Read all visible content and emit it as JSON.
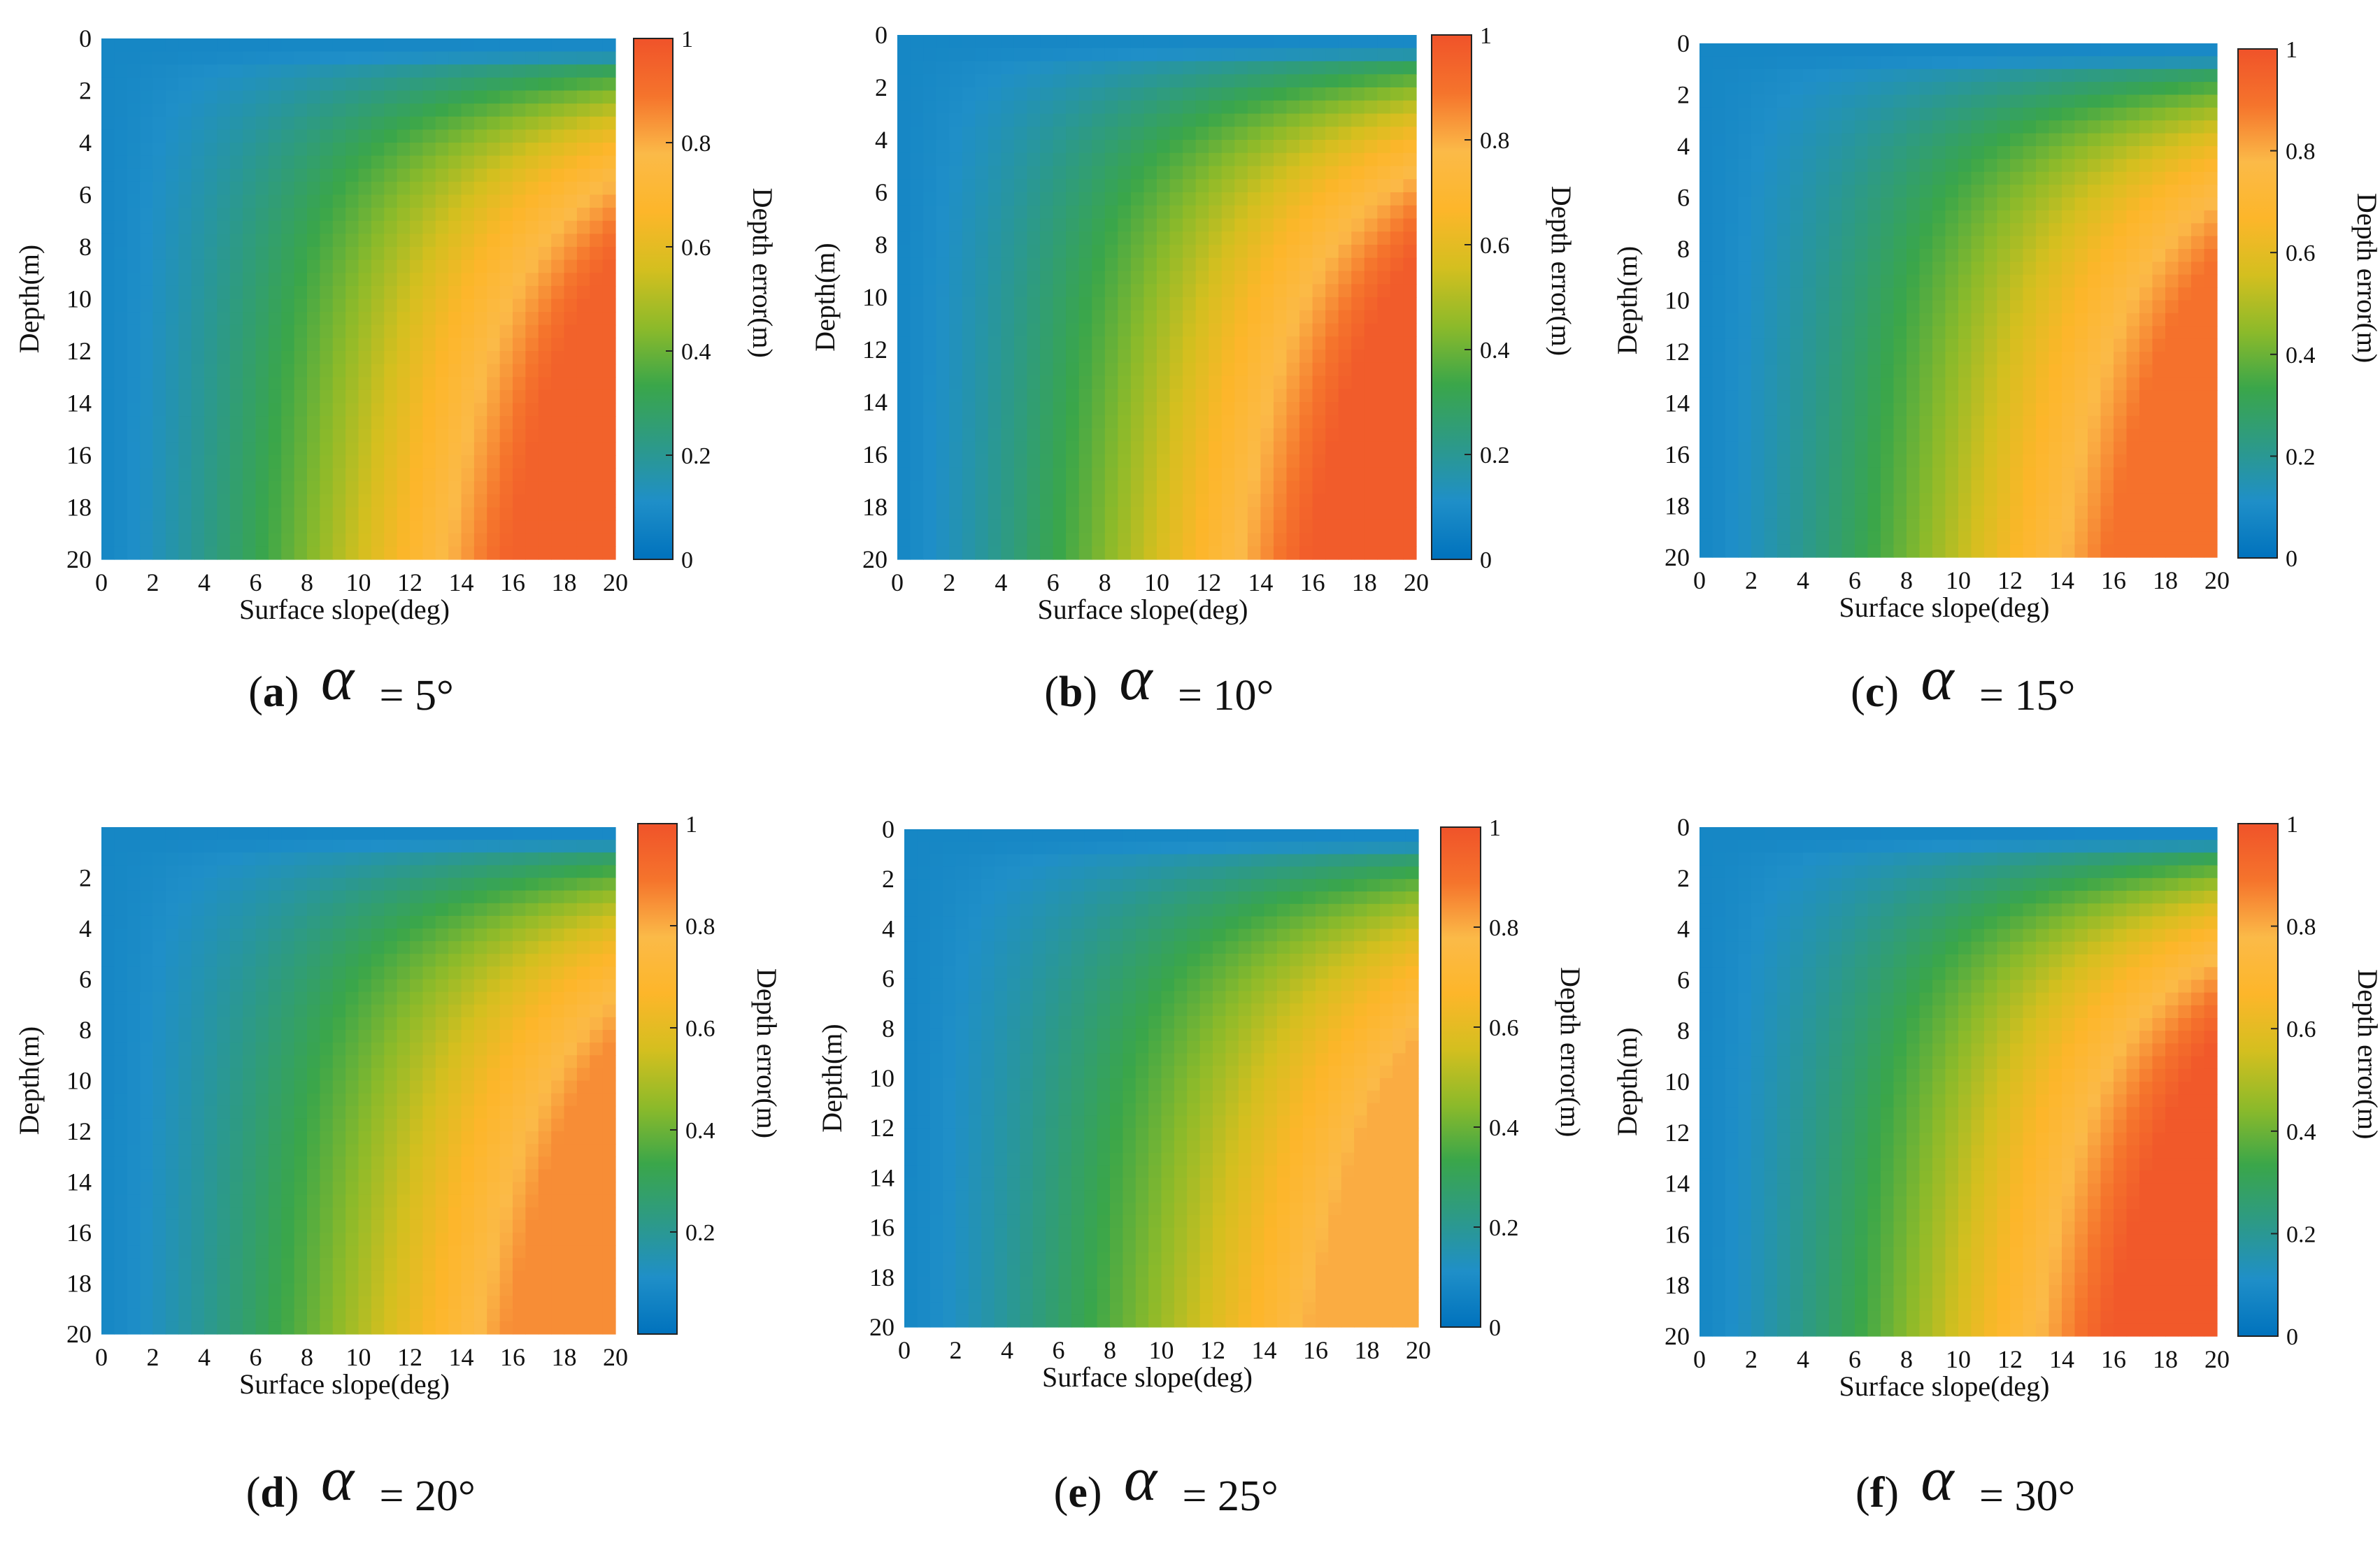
{
  "colors": {
    "colormap": [
      "#0072bd",
      "#1f8fc8",
      "#2d9a86",
      "#3aa64a",
      "#8cba2a",
      "#d4bf1f",
      "#fdb62a",
      "#fbba48",
      "#f5742c",
      "#f0532a"
    ],
    "text": "#111111",
    "axis": "#222222"
  },
  "chart_data": [
    {
      "type": "heatmap",
      "panel": "(a)",
      "letter": "a",
      "alpha_symbol": "α",
      "alpha_label": "= 5°",
      "alpha_deg": 5,
      "xlabel": "Surface slope(deg)",
      "ylabel": "Depth(m)",
      "colorbar_label": "Depth error(m)",
      "xlim": [
        0,
        20
      ],
      "ylim": [
        0,
        20
      ],
      "clim": [
        0,
        1
      ],
      "x_ticks": [
        "0",
        "2",
        "4",
        "6",
        "8",
        "10",
        "12",
        "14",
        "16",
        "18",
        "20"
      ],
      "y_ticks": [
        "0",
        "2",
        "4",
        "6",
        "8",
        "10",
        "12",
        "14",
        "16",
        "18",
        "20"
      ],
      "colorbar_ticks": [
        "0",
        "0.2",
        "0.4",
        "0.6",
        "0.8",
        "1"
      ],
      "data_description": "Depth error rises with surface slope and with depth; maximum about 0.95 m near slope 20 deg, depth 20 m"
    },
    {
      "type": "heatmap",
      "panel": "(b)",
      "letter": "b",
      "alpha_symbol": "α",
      "alpha_label": "= 10°",
      "alpha_deg": 10,
      "xlabel": "Surface slope(deg)",
      "ylabel": "Depth(m)",
      "colorbar_label": "Depth error(m)",
      "xlim": [
        0,
        20
      ],
      "ylim": [
        0,
        20
      ],
      "clim": [
        0,
        1
      ],
      "x_ticks": [
        "0",
        "2",
        "4",
        "6",
        "8",
        "10",
        "12",
        "14",
        "16",
        "18",
        "20"
      ],
      "y_ticks": [
        "0",
        "2",
        "4",
        "6",
        "8",
        "10",
        "12",
        "14",
        "16",
        "18",
        "20"
      ],
      "colorbar_ticks": [
        "0",
        "0.2",
        "0.4",
        "0.6",
        "0.8",
        "1"
      ],
      "data_description": "Depth error rises with surface slope and with depth; maximum about 0.97 m near slope 20 deg, depth 20 m"
    },
    {
      "type": "heatmap",
      "panel": "(c)",
      "letter": "c",
      "alpha_symbol": "α",
      "alpha_label": "= 15°",
      "alpha_deg": 15,
      "xlabel": "Surface slope(deg)",
      "ylabel": "Depth(m)",
      "colorbar_label": "Depth error(m)",
      "xlim": [
        0,
        20
      ],
      "ylim": [
        0,
        20
      ],
      "clim": [
        0,
        1
      ],
      "x_ticks": [
        "0",
        "2",
        "4",
        "6",
        "8",
        "10",
        "12",
        "14",
        "16",
        "18",
        "20"
      ],
      "y_ticks": [
        "0",
        "2",
        "4",
        "6",
        "8",
        "10",
        "12",
        "14",
        "16",
        "18",
        "20"
      ],
      "colorbar_ticks": [
        "0",
        "0.2",
        "0.4",
        "0.6",
        "0.8",
        "1"
      ],
      "data_description": "Depth error rises with surface slope and with depth; maximum about 0.9 m near slope 20 deg, depth 20 m"
    },
    {
      "type": "heatmap",
      "panel": "(d)",
      "letter": "d",
      "alpha_symbol": "α",
      "alpha_label": "= 20°",
      "alpha_deg": 20,
      "xlabel": "Surface slope(deg)",
      "ylabel": "Depth(m)",
      "colorbar_label": "Depth error(m)",
      "xlim": [
        0,
        20
      ],
      "ylim": [
        0,
        20
      ],
      "clim": [
        0,
        1
      ],
      "x_ticks": [
        "0",
        "2",
        "4",
        "6",
        "8",
        "10",
        "12",
        "14",
        "16",
        "18",
        "20"
      ],
      "y_ticks": [
        "2",
        "4",
        "6",
        "8",
        "10",
        "12",
        "14",
        "16",
        "18",
        "20"
      ],
      "colorbar_ticks": [
        "0.2",
        "0.4",
        "0.6",
        "0.8",
        "1"
      ],
      "data_description": "Depth error rises with surface slope and with depth; maximum about 0.85 m near slope 20 deg, depth 20 m"
    },
    {
      "type": "heatmap",
      "panel": "(e)",
      "letter": "e",
      "alpha_symbol": "α",
      "alpha_label": "= 25°",
      "alpha_deg": 25,
      "xlabel": "Surface slope(deg)",
      "ylabel": "Depth(m)",
      "colorbar_label": "Depth error(m)",
      "xlim": [
        0,
        20
      ],
      "ylim": [
        0,
        20
      ],
      "clim": [
        0,
        1
      ],
      "x_ticks": [
        "0",
        "2",
        "4",
        "6",
        "8",
        "10",
        "12",
        "14",
        "16",
        "18",
        "20"
      ],
      "y_ticks": [
        "0",
        "2",
        "4",
        "6",
        "8",
        "10",
        "12",
        "14",
        "16",
        "18",
        "20"
      ],
      "colorbar_ticks": [
        "0",
        "0.2",
        "0.4",
        "0.6",
        "0.8",
        "1"
      ],
      "data_description": "Depth error rises with surface slope and with depth; maximum about 0.8 m near slope 20 deg, depth 20 m"
    },
    {
      "type": "heatmap",
      "panel": "(f)",
      "letter": "f",
      "alpha_symbol": "α",
      "alpha_label": "= 30°",
      "alpha_deg": 30,
      "xlabel": "Surface slope(deg)",
      "ylabel": "Depth(m)",
      "colorbar_label": "Depth error(m)",
      "xlim": [
        0,
        20
      ],
      "ylim": [
        0,
        20
      ],
      "clim": [
        0,
        1
      ],
      "x_ticks": [
        "0",
        "2",
        "4",
        "6",
        "8",
        "10",
        "12",
        "14",
        "16",
        "18",
        "20"
      ],
      "y_ticks": [
        "0",
        "2",
        "4",
        "6",
        "8",
        "10",
        "12",
        "14",
        "16",
        "18",
        "20"
      ],
      "colorbar_ticks": [
        "0",
        "0.2",
        "0.4",
        "0.6",
        "0.8",
        "1"
      ],
      "data_description": "Depth error rises with surface slope and with depth; maximum about 0.98 m near slope 20 deg, depth 20 m"
    }
  ]
}
